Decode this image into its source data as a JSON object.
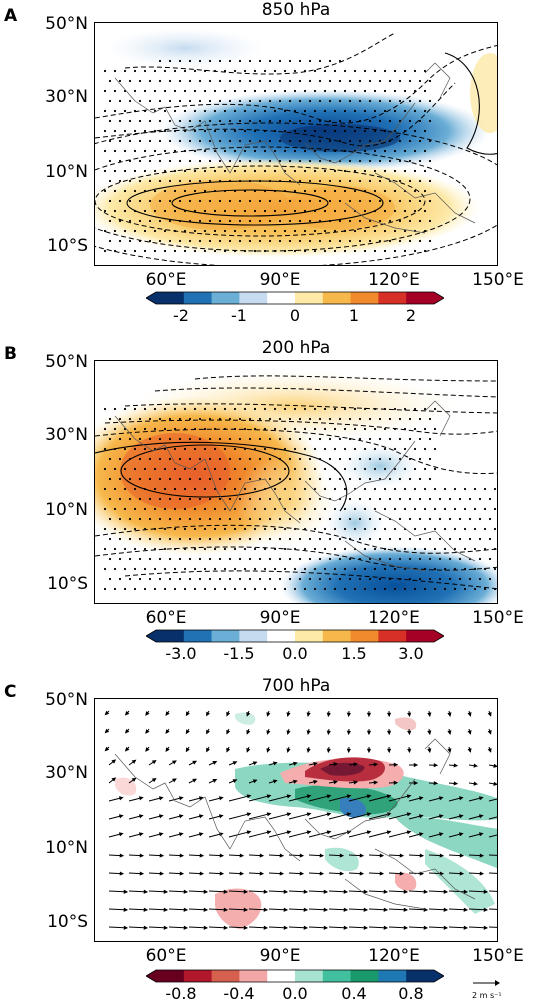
{
  "panels": [
    {
      "letter": "A",
      "title": "850 hPa",
      "lat_labels": [
        "50°N",
        "30°N",
        "10°N",
        "10°S"
      ],
      "lon_labels": [
        "60°E",
        "90°E",
        "120°E",
        "150°E"
      ],
      "colorbar_ticks": [
        "-2",
        "-1",
        "0",
        "1",
        "2"
      ],
      "colorbar_colors": [
        "#08306b",
        "#2171b5",
        "#6baed6",
        "#c6dbef",
        "#ffffff",
        "#fde9a8",
        "#f7b84b",
        "#f08a2c",
        "#d73027",
        "#a50026"
      ]
    },
    {
      "letter": "B",
      "title": "200 hPa",
      "lat_labels": [
        "50°N",
        "30°N",
        "10°N",
        "10°S"
      ],
      "lon_labels": [
        "60°E",
        "90°E",
        "120°E",
        "150°E"
      ],
      "colorbar_ticks": [
        "-3.0",
        "-1.5",
        "0.0",
        "1.5",
        "3.0"
      ],
      "colorbar_colors": [
        "#08306b",
        "#2171b5",
        "#6baed6",
        "#c6dbef",
        "#ffffff",
        "#fde9a8",
        "#f7b84b",
        "#f08a2c",
        "#d73027",
        "#a50026"
      ]
    },
    {
      "letter": "C",
      "title": "700 hPa",
      "lat_labels": [
        "50°N",
        "30°N",
        "10°N",
        "10°S"
      ],
      "lon_labels": [
        "60°E",
        "90°E",
        "120°E",
        "150°E"
      ],
      "colorbar_ticks": [
        "-0.8",
        "-0.4",
        "0.0",
        "0.4",
        "0.8"
      ],
      "colorbar_colors": [
        "#67001f",
        "#b2182b",
        "#d6604d",
        "#f4a5a5",
        "#ffffff",
        "#a6e3d0",
        "#41c0a0",
        "#1a9a6c",
        "#1f78b4",
        "#08306b"
      ],
      "ref_vector_label": "2 m s⁻¹"
    }
  ]
}
